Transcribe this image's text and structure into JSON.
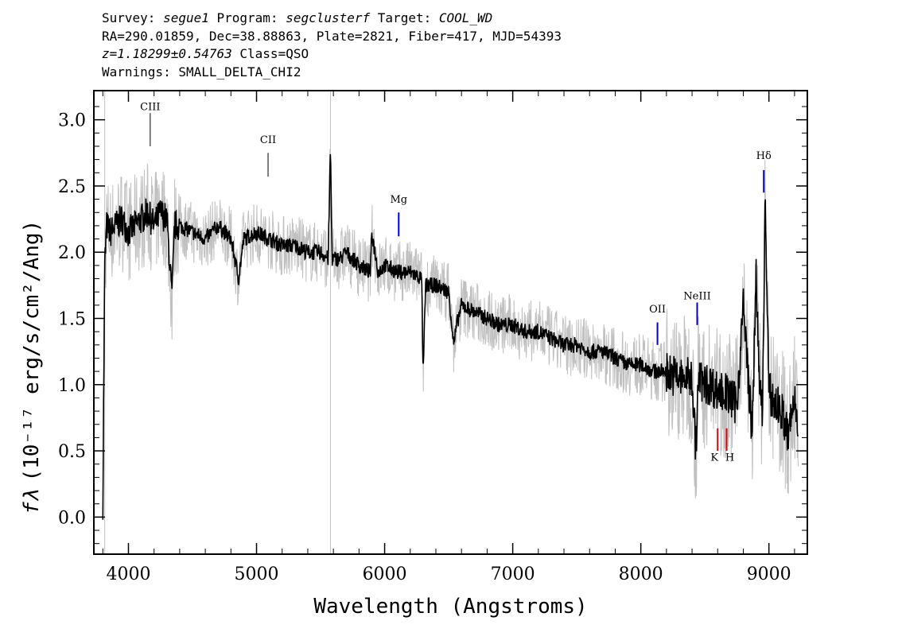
{
  "header": {
    "line1": {
      "survey_label": "Survey: ",
      "survey": "segue1",
      "program_label": " Program: ",
      "program": "segclusterf",
      "target_label": " Target: ",
      "target": "COOL_WD"
    },
    "line2": "RA=290.01859, Dec=38.88863, Plate=2821, Fiber=417, MJD=54393",
    "line3": {
      "z": "z=1.18299±0.54763",
      "class": " Class=QSO"
    },
    "line4": "Warnings: SMALL_DELTA_CHI2"
  },
  "chart_data": {
    "type": "line",
    "xlabel": "Wavelength (Angstroms)",
    "ylabel": "(10⁻¹⁷ erg/s/cm²/Ang)",
    "ylabel_symbol": "fλ",
    "xlim": [
      3730,
      9300
    ],
    "ylim": [
      -0.28,
      3.22
    ],
    "x_ticks": [
      4000,
      5000,
      6000,
      7000,
      8000,
      9000
    ],
    "x_tick_labels": [
      "4000",
      "5000",
      "6000",
      "7000",
      "8000",
      "9000"
    ],
    "y_ticks": [
      0.0,
      0.5,
      1.0,
      1.5,
      2.0,
      2.5,
      3.0
    ],
    "y_tick_labels": [
      "0.0",
      "0.5",
      "1.0",
      "1.5",
      "2.0",
      "2.5",
      "3.0"
    ],
    "grid": false,
    "colors": {
      "flux": "#000000",
      "noise": "#c0c0c0",
      "emission": "#0000cc",
      "absorption": "#dd0000",
      "cIII_marker": "#000000"
    },
    "series": [
      {
        "x": [
          3800,
          3815,
          3830,
          3860,
          3900,
          3950,
          4000,
          4050,
          4100,
          4150,
          4200,
          4250,
          4300,
          4340,
          4360,
          4400,
          4500,
          4600,
          4700,
          4800,
          4860,
          4900,
          5000,
          5100,
          5200,
          5300,
          5400,
          5500,
          5560,
          5577,
          5590,
          5650,
          5700,
          5800,
          5890,
          5900,
          5950,
          6000,
          6100,
          6200,
          6290,
          6300,
          6320,
          6400,
          6500,
          6540,
          6563,
          6600,
          6700,
          6800,
          6900,
          7000,
          7100,
          7200,
          7300,
          7400,
          7500,
          7600,
          7700,
          7800,
          7900,
          8000,
          8100,
          8200,
          8300,
          8400,
          8430,
          8450,
          8500,
          8550,
          8600,
          8650,
          8700,
          8750,
          8800,
          8850,
          8870,
          8900,
          8920,
          8950,
          8970,
          9000,
          9050,
          9100,
          9150,
          9200,
          9230
        ],
        "y": [
          0.1,
          1.9,
          2.2,
          2.15,
          2.2,
          2.25,
          2.15,
          2.2,
          2.25,
          2.3,
          2.2,
          2.3,
          2.25,
          1.65,
          2.2,
          2.2,
          2.15,
          2.1,
          2.2,
          2.1,
          1.8,
          2.1,
          2.15,
          2.1,
          2.05,
          2.05,
          2.0,
          2.0,
          1.95,
          2.8,
          1.95,
          1.95,
          2.0,
          1.9,
          1.85,
          2.15,
          1.85,
          1.9,
          1.85,
          1.85,
          1.8,
          1.05,
          1.75,
          1.75,
          1.7,
          1.3,
          1.45,
          1.6,
          1.55,
          1.5,
          1.45,
          1.45,
          1.4,
          1.4,
          1.35,
          1.3,
          1.3,
          1.25,
          1.25,
          1.2,
          1.15,
          1.15,
          1.1,
          1.1,
          1.05,
          1.05,
          0.5,
          1.05,
          1.0,
          1.0,
          0.95,
          0.95,
          0.9,
          0.85,
          1.6,
          0.9,
          0.6,
          1.9,
          1.1,
          0.75,
          2.4,
          0.95,
          0.85,
          0.8,
          0.6,
          0.9,
          0.7
        ]
      }
    ],
    "lines": [
      {
        "name": "CIII",
        "x": 4170,
        "y0": 2.8,
        "y1": 3.05,
        "label_y": 3.05,
        "kind": "marker"
      },
      {
        "name": "CII",
        "x": 5090,
        "y0": 2.57,
        "y1": 2.75,
        "label_y": 2.8,
        "kind": "marker"
      },
      {
        "name": "Mg",
        "x": 6110,
        "y0": 2.12,
        "y1": 2.3,
        "label_y": 2.35,
        "kind": "emission"
      },
      {
        "name": "OII",
        "x": 8130,
        "y0": 1.3,
        "y1": 1.47,
        "label_y": 1.52,
        "kind": "emission"
      },
      {
        "name": "NeIII",
        "x": 8440,
        "y0": 1.45,
        "y1": 1.62,
        "label_y": 1.62,
        "kind": "emission"
      },
      {
        "name": "Hδ",
        "x": 8960,
        "y0": 2.45,
        "y1": 2.62,
        "label_y": 2.68,
        "kind": "emission"
      },
      {
        "name": "K",
        "x": 8600,
        "y0": 0.5,
        "y1": 0.67,
        "label_y": 0.4,
        "kind": "absorption"
      },
      {
        "name": "H",
        "x": 8670,
        "y0": 0.5,
        "y1": 0.67,
        "label_y": 0.4,
        "kind": "absorption"
      }
    ]
  }
}
